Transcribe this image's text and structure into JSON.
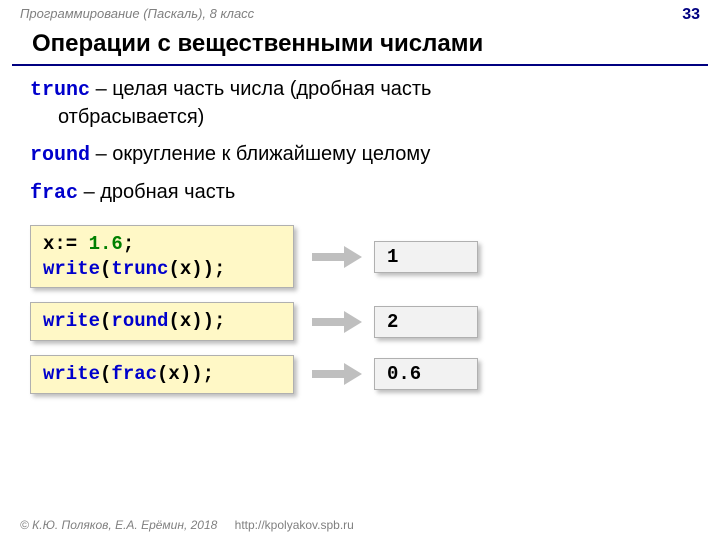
{
  "header": {
    "course": "Программирование (Паскаль), 8 класс",
    "page": "33"
  },
  "title": "Операции с вещественными числами",
  "defs": [
    {
      "kw": "trunc",
      "text_line1": " – целая часть числа (дробная часть",
      "text_line2": "отбрасывается)"
    },
    {
      "kw": "round",
      "text_line1": " – округление к ближайшему целому",
      "text_line2": ""
    },
    {
      "kw": "frac",
      "text_line1": " – дробная часть",
      "text_line2": ""
    }
  ],
  "examples": [
    {
      "code": [
        {
          "segments": [
            {
              "t": "x:= ",
              "c": "plain"
            },
            {
              "t": "1.6",
              "c": "num"
            },
            {
              "t": ";",
              "c": "plain"
            }
          ]
        },
        {
          "segments": [
            {
              "t": "write",
              "c": "kw2"
            },
            {
              "t": "(",
              "c": "plain"
            },
            {
              "t": "trunc",
              "c": "kw2"
            },
            {
              "t": "(x));",
              "c": "plain"
            }
          ]
        }
      ],
      "result": "1"
    },
    {
      "code": [
        {
          "segments": [
            {
              "t": "write",
              "c": "kw2"
            },
            {
              "t": "(",
              "c": "plain"
            },
            {
              "t": "round",
              "c": "kw2"
            },
            {
              "t": "(x));",
              "c": "plain"
            }
          ]
        }
      ],
      "result": "2"
    },
    {
      "code": [
        {
          "segments": [
            {
              "t": "write",
              "c": "kw2"
            },
            {
              "t": "(",
              "c": "plain"
            },
            {
              "t": "frac",
              "c": "kw2"
            },
            {
              "t": "(x));",
              "c": "plain"
            }
          ]
        }
      ],
      "result": "0.6"
    }
  ],
  "footer": {
    "copyright": "© К.Ю. Поляков, Е.А. Ерёмин, 2018",
    "url": "http://kpolyakov.spb.ru"
  },
  "style": {
    "codebox_bg": "#fff8c6",
    "resultbox_bg": "#f2f2f2",
    "arrow_color": "#bfbfbf",
    "title_underline": "#000080",
    "kw_color": "#0000cc",
    "num_color": "#008000"
  }
}
